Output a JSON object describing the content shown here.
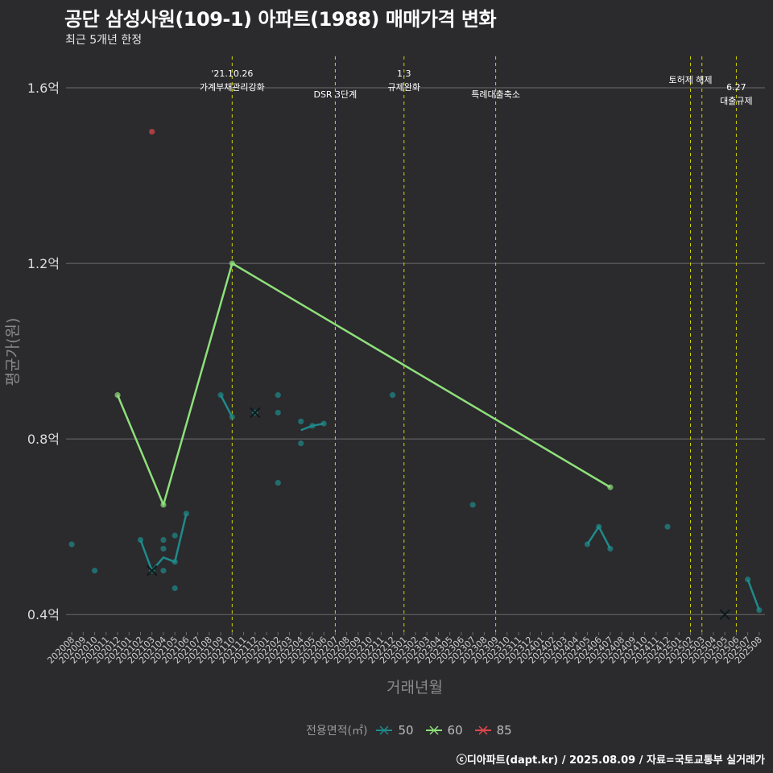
{
  "header": {
    "title": "공단 삼성사원(109-1) 아파트(1988) 매매가격 변화",
    "subtitle": "최근 5개년 한정"
  },
  "legend": {
    "title": "전용면적(㎡)",
    "items": [
      {
        "label": "50",
        "color": "#1f8a8a"
      },
      {
        "label": "60",
        "color": "#8ee07a"
      },
      {
        "label": "85",
        "color": "#e0484c"
      }
    ]
  },
  "caption": "ⓒ디아파트(dapt.kr) / 2025.08.09 / 자료=국토교통부 실거래가",
  "chart_data": {
    "type": "line",
    "title": "공단 삼성사원(109-1) 아파트(1988) 매매가격 변화",
    "xlabel": "거래년월",
    "ylabel": "평균가(원)",
    "ylim": [
      0.36,
      1.69
    ],
    "y_ticks": [
      {
        "value": 0.4,
        "label": "0.4억"
      },
      {
        "value": 0.8,
        "label": "0.8억"
      },
      {
        "value": 1.2,
        "label": "1.2억"
      },
      {
        "value": 1.6,
        "label": "1.6억"
      }
    ],
    "categories": [
      "202008",
      "202009",
      "202010",
      "202011",
      "202012",
      "202101",
      "202102",
      "202103",
      "202104",
      "202105",
      "202106",
      "202107",
      "202108",
      "202109",
      "202110",
      "202111",
      "202112",
      "202201",
      "202202",
      "202203",
      "202204",
      "202205",
      "202206",
      "202207",
      "202208",
      "202209",
      "202210",
      "202211",
      "202212",
      "202301",
      "202302",
      "202303",
      "202304",
      "202305",
      "202306",
      "202307",
      "202308",
      "202309",
      "202310",
      "202311",
      "202312",
      "202401",
      "202402",
      "202403",
      "202404",
      "202405",
      "202406",
      "202407",
      "202408",
      "202409",
      "202410",
      "202411",
      "202412",
      "202501",
      "202502",
      "202503",
      "202504",
      "202505",
      "202506",
      "202507",
      "202508"
    ],
    "grid": true,
    "legend_position": "bottom",
    "series": [
      {
        "name": "50",
        "color": "#1f8a8a",
        "lines": [
          [
            [
              "202102",
              0.57
            ],
            [
              "202103",
              0.5
            ],
            [
              "202104",
              0.53
            ],
            [
              "202105",
              0.52
            ],
            [
              "202106",
              0.63
            ]
          ],
          [
            [
              "202109",
              0.9
            ],
            [
              "202110",
              0.85
            ]
          ],
          [
            [
              "202204",
              0.82
            ],
            [
              "202205",
              0.83
            ],
            [
              "202206",
              0.835
            ]
          ],
          [
            [
              "202405",
              0.56
            ],
            [
              "202406",
              0.6
            ],
            [
              "202407",
              0.55
            ]
          ],
          [
            [
              "202507",
              0.48
            ],
            [
              "202508",
              0.41
            ]
          ]
        ],
        "points": [
          [
            "202008",
            0.56
          ],
          [
            "202010",
            0.5
          ],
          [
            "202102",
            0.57
          ],
          [
            "202103",
            0.5
          ],
          [
            "202104",
            0.57
          ],
          [
            "202104",
            0.55
          ],
          [
            "202104",
            0.5
          ],
          [
            "202105",
            0.58
          ],
          [
            "202105",
            0.52
          ],
          [
            "202105",
            0.46
          ],
          [
            "202106",
            0.63
          ],
          [
            "202109",
            0.9
          ],
          [
            "202110",
            0.85
          ],
          [
            "202112",
            0.86
          ],
          [
            "202202",
            0.9
          ],
          [
            "202202",
            0.86
          ],
          [
            "202202",
            0.7
          ],
          [
            "202204",
            0.84
          ],
          [
            "202204",
            0.79
          ],
          [
            "202205",
            0.83
          ],
          [
            "202206",
            0.835
          ],
          [
            "202212",
            0.9
          ],
          [
            "202307",
            0.65
          ],
          [
            "202405",
            0.56
          ],
          [
            "202406",
            0.6
          ],
          [
            "202407",
            0.55
          ],
          [
            "202412",
            0.6
          ],
          [
            "202507",
            0.48
          ],
          [
            "202508",
            0.41
          ]
        ],
        "x_marks": [
          [
            "202103",
            0.5
          ],
          [
            "202112",
            0.86
          ],
          [
            "202505",
            0.4
          ]
        ]
      },
      {
        "name": "60",
        "color": "#8ee07a",
        "lines": [
          [
            [
              "202012",
              0.9
            ],
            [
              "202104",
              0.65
            ],
            [
              "202110",
              1.2
            ],
            [
              "202407",
              0.69
            ]
          ]
        ],
        "points": [
          [
            "202012",
            0.9
          ],
          [
            "202104",
            0.65
          ],
          [
            "202110",
            1.2
          ],
          [
            "202407",
            0.69
          ]
        ],
        "x_marks": []
      },
      {
        "name": "85",
        "color": "#e0484c",
        "lines": [],
        "points": [
          [
            "202103",
            1.5
          ]
        ],
        "x_marks": []
      }
    ],
    "annotations": [
      {
        "x": "202110",
        "lines": [
          "'21.10.26",
          "가계부채관리강화"
        ],
        "row": 0
      },
      {
        "x": "202207",
        "lines": [
          "DSR 3단계"
        ],
        "row": 2
      },
      {
        "x": "202301",
        "lines": [
          "1.3",
          "규제완화"
        ],
        "row": 0
      },
      {
        "x": "202309",
        "lines": [
          "특례대출축소"
        ],
        "row": 2
      },
      {
        "x": "202502",
        "lines": [
          "토허제 해제"
        ],
        "row": 1
      },
      {
        "x": "202503",
        "lines": [],
        "row": 1
      },
      {
        "x": "202506",
        "lines": [
          "6.27",
          "대출규제"
        ],
        "row": 3
      }
    ]
  }
}
